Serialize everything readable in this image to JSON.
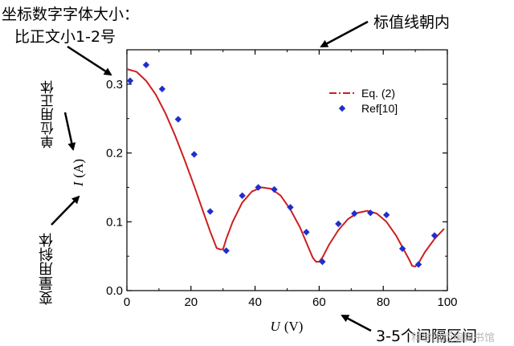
{
  "chart_data": {
    "type": "line",
    "xlabel_var": "U",
    "xlabel_unit": "(V)",
    "ylabel_var": "I",
    "ylabel_unit": "(A)",
    "xlim": [
      0,
      100
    ],
    "ylim": [
      0.0,
      0.35
    ],
    "x_ticks": [
      0,
      20,
      40,
      60,
      80,
      100
    ],
    "y_ticks": [
      0.0,
      0.1,
      0.2,
      0.3
    ],
    "y_tick_labels": [
      "0.0",
      "0.1",
      "0.2",
      "0.3"
    ],
    "grid": false,
    "legend_position": "top-right",
    "series": [
      {
        "name": "Eq. (2)",
        "kind": "line",
        "style": "dash-dot",
        "color": "#cc1f1f",
        "x": [
          0,
          3,
          6,
          9,
          12,
          15,
          18,
          21,
          24,
          26,
          28,
          29,
          30,
          31,
          33,
          36,
          39,
          42,
          45,
          48,
          51,
          54,
          56,
          58,
          59,
          60,
          61,
          63,
          66,
          69,
          72,
          75,
          78,
          81,
          84,
          86,
          88,
          89,
          90,
          91,
          93,
          96,
          99
        ],
        "y": [
          0.322,
          0.318,
          0.305,
          0.285,
          0.258,
          0.226,
          0.19,
          0.152,
          0.112,
          0.086,
          0.062,
          0.06,
          0.06,
          0.075,
          0.1,
          0.128,
          0.144,
          0.15,
          0.148,
          0.138,
          0.118,
          0.092,
          0.07,
          0.048,
          0.042,
          0.042,
          0.048,
          0.066,
          0.088,
          0.104,
          0.113,
          0.116,
          0.112,
          0.1,
          0.08,
          0.063,
          0.046,
          0.036,
          0.035,
          0.04,
          0.056,
          0.075,
          0.09
        ]
      },
      {
        "name": "Ref[10]",
        "kind": "scatter",
        "marker": "diamond",
        "color": "#1f2fcc",
        "x": [
          1,
          6,
          11,
          16,
          21,
          26,
          31,
          36,
          41,
          46,
          51,
          56,
          61,
          66,
          71,
          76,
          81,
          86,
          91,
          96
        ],
        "y": [
          0.305,
          0.328,
          0.293,
          0.249,
          0.198,
          0.115,
          0.058,
          0.138,
          0.15,
          0.147,
          0.121,
          0.085,
          0.042,
          0.097,
          0.112,
          0.113,
          0.11,
          0.061,
          0.038,
          0.08
        ]
      }
    ]
  },
  "annotations": {
    "tick_font": "坐标数字字体大小：",
    "tick_font_2": "比正文小1-2号",
    "tick_direction": "标值线朝内",
    "unit_style": "单位用正体",
    "var_style": "变量用斜体",
    "tick_spacing": "3-5个间隔区间"
  },
  "watermark": "科学出版编辑书馆"
}
